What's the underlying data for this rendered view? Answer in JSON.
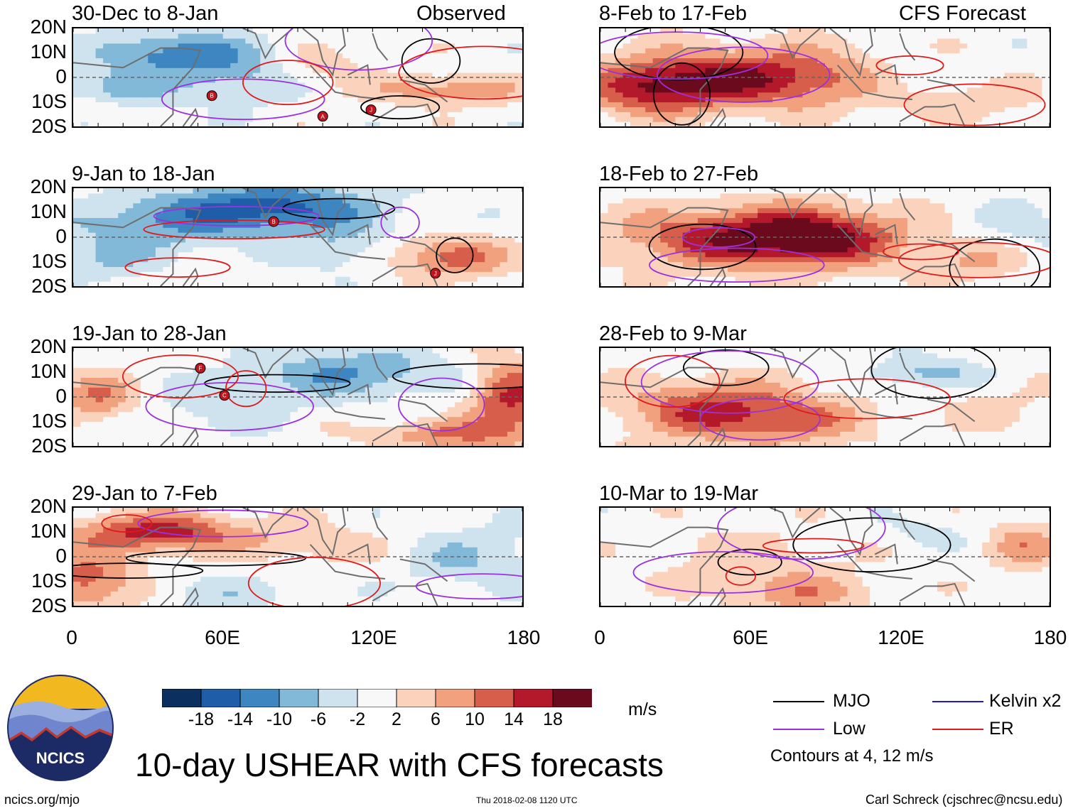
{
  "header": {
    "left_tag": "Observed",
    "right_tag": "CFS Forecast"
  },
  "panels": [
    {
      "title": "30-Dec to 8-Jan",
      "kind": "obs",
      "seed": 1,
      "storms": [
        "A",
        "J",
        "B"
      ]
    },
    {
      "title": "9-Jan to 18-Jan",
      "kind": "obs",
      "seed": 2,
      "storms": [
        "B",
        "J"
      ]
    },
    {
      "title": "19-Jan to 28-Jan",
      "kind": "obs",
      "seed": 3,
      "storms": [
        "C",
        "F"
      ]
    },
    {
      "title": "29-Jan to 7-Feb",
      "kind": "obs",
      "seed": 4,
      "storms": []
    },
    {
      "title": "8-Feb to 17-Feb",
      "kind": "fcst",
      "seed": 5,
      "storms": []
    },
    {
      "title": "18-Feb to 27-Feb",
      "kind": "fcst",
      "seed": 6,
      "storms": []
    },
    {
      "title": "28-Feb to 9-Mar",
      "kind": "fcst",
      "seed": 7,
      "storms": []
    },
    {
      "title": "10-Mar to 19-Mar",
      "kind": "fcst",
      "seed": 8,
      "storms": []
    }
  ],
  "axes": {
    "lat_labels": [
      "20N",
      "10N",
      "0",
      "10S",
      "20S"
    ],
    "lon_labels": [
      "0",
      "60E",
      "120E",
      "180"
    ],
    "lat_range": [
      -20,
      20
    ],
    "lon_range": [
      0,
      180
    ]
  },
  "colorbar": {
    "labels": [
      "-18",
      "-14",
      "-10",
      "-6",
      "-2",
      "2",
      "6",
      "10",
      "14",
      "18"
    ],
    "colors": [
      "#0b2f5f",
      "#1f5da8",
      "#3d86c1",
      "#83b9d8",
      "#cfe3ef",
      "#f8f8f8",
      "#fbd3bd",
      "#f2a17f",
      "#d75e4a",
      "#b3192b",
      "#6b0a1c"
    ],
    "units": "m/s"
  },
  "legend": {
    "items": [
      {
        "label": "MJO",
        "color": "#000000"
      },
      {
        "label": "Kelvin x2",
        "color": "#1a1ad6"
      },
      {
        "label": "Low",
        "color": "#9b30e0"
      },
      {
        "label": "ER",
        "color": "#e01a1a"
      }
    ],
    "note": "Contours at 4, 12 m/s"
  },
  "logo": {
    "text": "NCICS"
  },
  "title": "10-day USHEAR with CFS forecasts",
  "footer": {
    "url": "ncics.org/mjo",
    "timestamp": "Thu 2018-02-08 1120 UTC",
    "credit": "Carl Schreck (cjschrec@ncsu.edu)"
  }
}
